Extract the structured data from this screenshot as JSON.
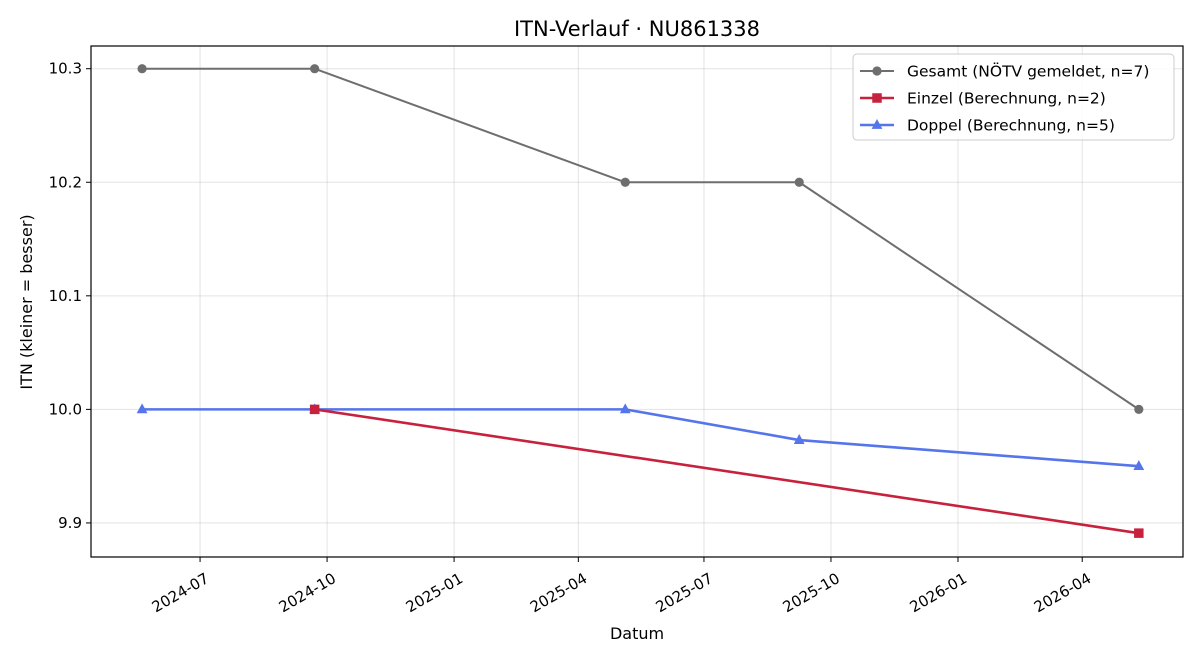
{
  "chart_data": {
    "type": "line",
    "title": "ITN-Verlauf · NU861338",
    "xlabel": "Datum",
    "ylabel": "ITN  (kleiner = besser)",
    "x_type": "date",
    "xlim": [
      "2024-04-13",
      "2026-06-13"
    ],
    "ylim": [
      9.87,
      10.32
    ],
    "x_ticks": [
      "2024-07-01",
      "2024-10-01",
      "2025-01-01",
      "2025-04-01",
      "2025-07-01",
      "2025-10-01",
      "2026-01-01",
      "2026-04-01"
    ],
    "x_tick_labels": [
      "2024-07",
      "2024-10",
      "2025-01",
      "2025-04",
      "2025-07",
      "2025-10",
      "2026-01",
      "2026-04"
    ],
    "y_ticks": [
      9.9,
      10.0,
      10.1,
      10.2,
      10.3
    ],
    "y_tick_labels": [
      "9.9",
      "10.0",
      "10.1",
      "10.2",
      "10.3"
    ],
    "grid": true,
    "legend_position": "top-right",
    "series": [
      {
        "name": "Gesamt (NÖTV gemeldet, n=7)",
        "color": "#6e6e6e",
        "marker": "circle",
        "points": [
          {
            "x": "2024-05-20",
            "y": 10.3
          },
          {
            "x": "2024-09-22",
            "y": 10.3
          },
          {
            "x": "2025-05-05",
            "y": 10.2
          },
          {
            "x": "2025-09-08",
            "y": 10.2
          },
          {
            "x": "2026-05-12",
            "y": 10.0
          }
        ]
      },
      {
        "name": "Einzel (Berechnung, n=2)",
        "color": "#c8213d",
        "marker": "square",
        "points": [
          {
            "x": "2024-09-22",
            "y": 10.0
          },
          {
            "x": "2026-05-12",
            "y": 9.891
          }
        ]
      },
      {
        "name": "Doppel (Berechnung, n=5)",
        "color": "#5575ea",
        "marker": "triangle",
        "points": [
          {
            "x": "2024-05-20",
            "y": 10.0
          },
          {
            "x": "2024-09-22",
            "y": 10.0
          },
          {
            "x": "2025-05-05",
            "y": 10.0
          },
          {
            "x": "2025-09-08",
            "y": 9.973
          },
          {
            "x": "2026-05-12",
            "y": 9.95
          }
        ]
      }
    ]
  }
}
